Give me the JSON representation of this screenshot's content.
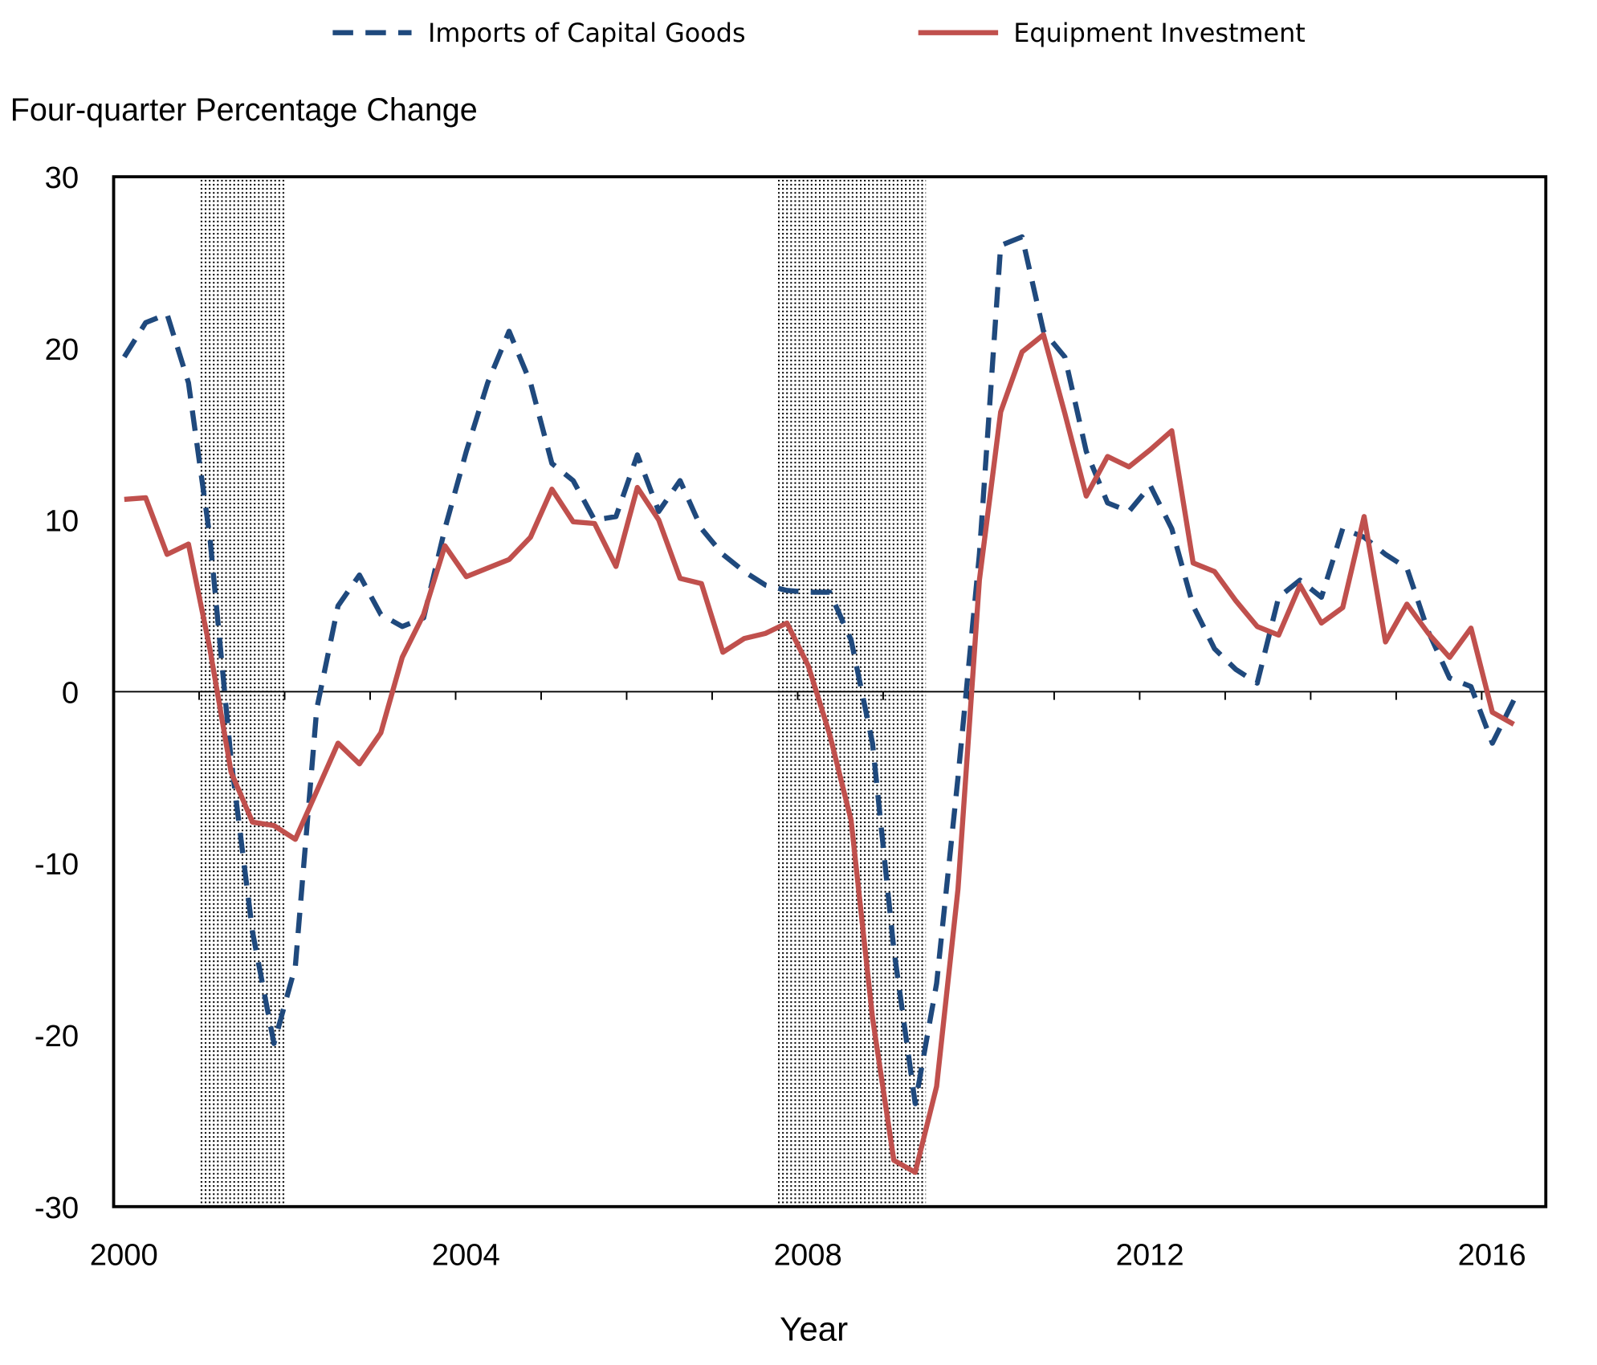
{
  "chart_data": {
    "type": "line",
    "title": "",
    "ylabel": "Four-quarter Percentage Change",
    "xlabel": "Year",
    "ylim": [
      -30,
      30
    ],
    "yticks": [
      "30",
      "20",
      "10",
      "0",
      "-10",
      "-20",
      "-30"
    ],
    "ytick_values": [
      30,
      20,
      10,
      0,
      -10,
      -20,
      -30
    ],
    "xticks": [
      "2000",
      "2004",
      "2008",
      "2012",
      "2016"
    ],
    "x_start": "2000 Q1",
    "x_frequency": "quarterly",
    "legend_placement": "top",
    "recessions": [
      {
        "start_quarter_index": 4,
        "end_quarter_index": 8,
        "label": "2001 recession"
      },
      {
        "start_quarter_index": 31,
        "end_quarter_index": 38,
        "label": "2007-2009 recession"
      }
    ],
    "series": [
      {
        "name": "Imports of Capital Goods",
        "color": "#1f497d",
        "style": "dashed",
        "values": [
          19.5,
          21.5,
          22.0,
          18.0,
          9.0,
          -4.0,
          -14.0,
          -20.5,
          -16.0,
          -1.0,
          5.0,
          6.8,
          4.5,
          3.8,
          4.3,
          9.5,
          14.0,
          18.0,
          21.0,
          18.0,
          13.3,
          12.3,
          10.0,
          10.2,
          13.8,
          10.5,
          12.3,
          9.5,
          8.0,
          7.0,
          6.2,
          5.9,
          5.8,
          5.8,
          3.0,
          -3.0,
          -15.0,
          -24.0,
          -17.0,
          -5.0,
          8.0,
          26.0,
          26.5,
          21.0,
          19.5,
          14.0,
          11.0,
          10.5,
          12.0,
          9.5,
          5.0,
          2.5,
          1.3,
          0.5,
          5.5,
          6.5,
          5.5,
          9.5,
          9.0,
          8.0,
          7.2,
          3.5,
          0.8,
          0.3,
          -3.0,
          -0.5
        ]
      },
      {
        "name": "Equipment Investment",
        "color": "#c0504d",
        "style": "solid",
        "values": [
          11.2,
          11.3,
          8.0,
          8.6,
          2.5,
          -4.7,
          -7.6,
          -7.8,
          -8.6,
          -5.8,
          -3.0,
          -4.2,
          -2.4,
          2.0,
          4.5,
          8.5,
          6.7,
          7.2,
          7.7,
          9.0,
          11.8,
          9.9,
          9.8,
          7.3,
          11.9,
          10.0,
          6.6,
          6.3,
          2.3,
          3.1,
          3.4,
          4.0,
          1.5,
          -2.5,
          -7.5,
          -19.0,
          -27.3,
          -28.0,
          -23.0,
          -11.5,
          6.5,
          16.3,
          19.8,
          20.8,
          16.2,
          11.4,
          13.7,
          13.1,
          14.1,
          15.2,
          7.5,
          7.0,
          5.3,
          3.8,
          3.3,
          6.2,
          4.0,
          4.9,
          10.2,
          2.9,
          5.1,
          3.4,
          2.0,
          3.7,
          -1.2,
          -1.9
        ]
      }
    ]
  }
}
